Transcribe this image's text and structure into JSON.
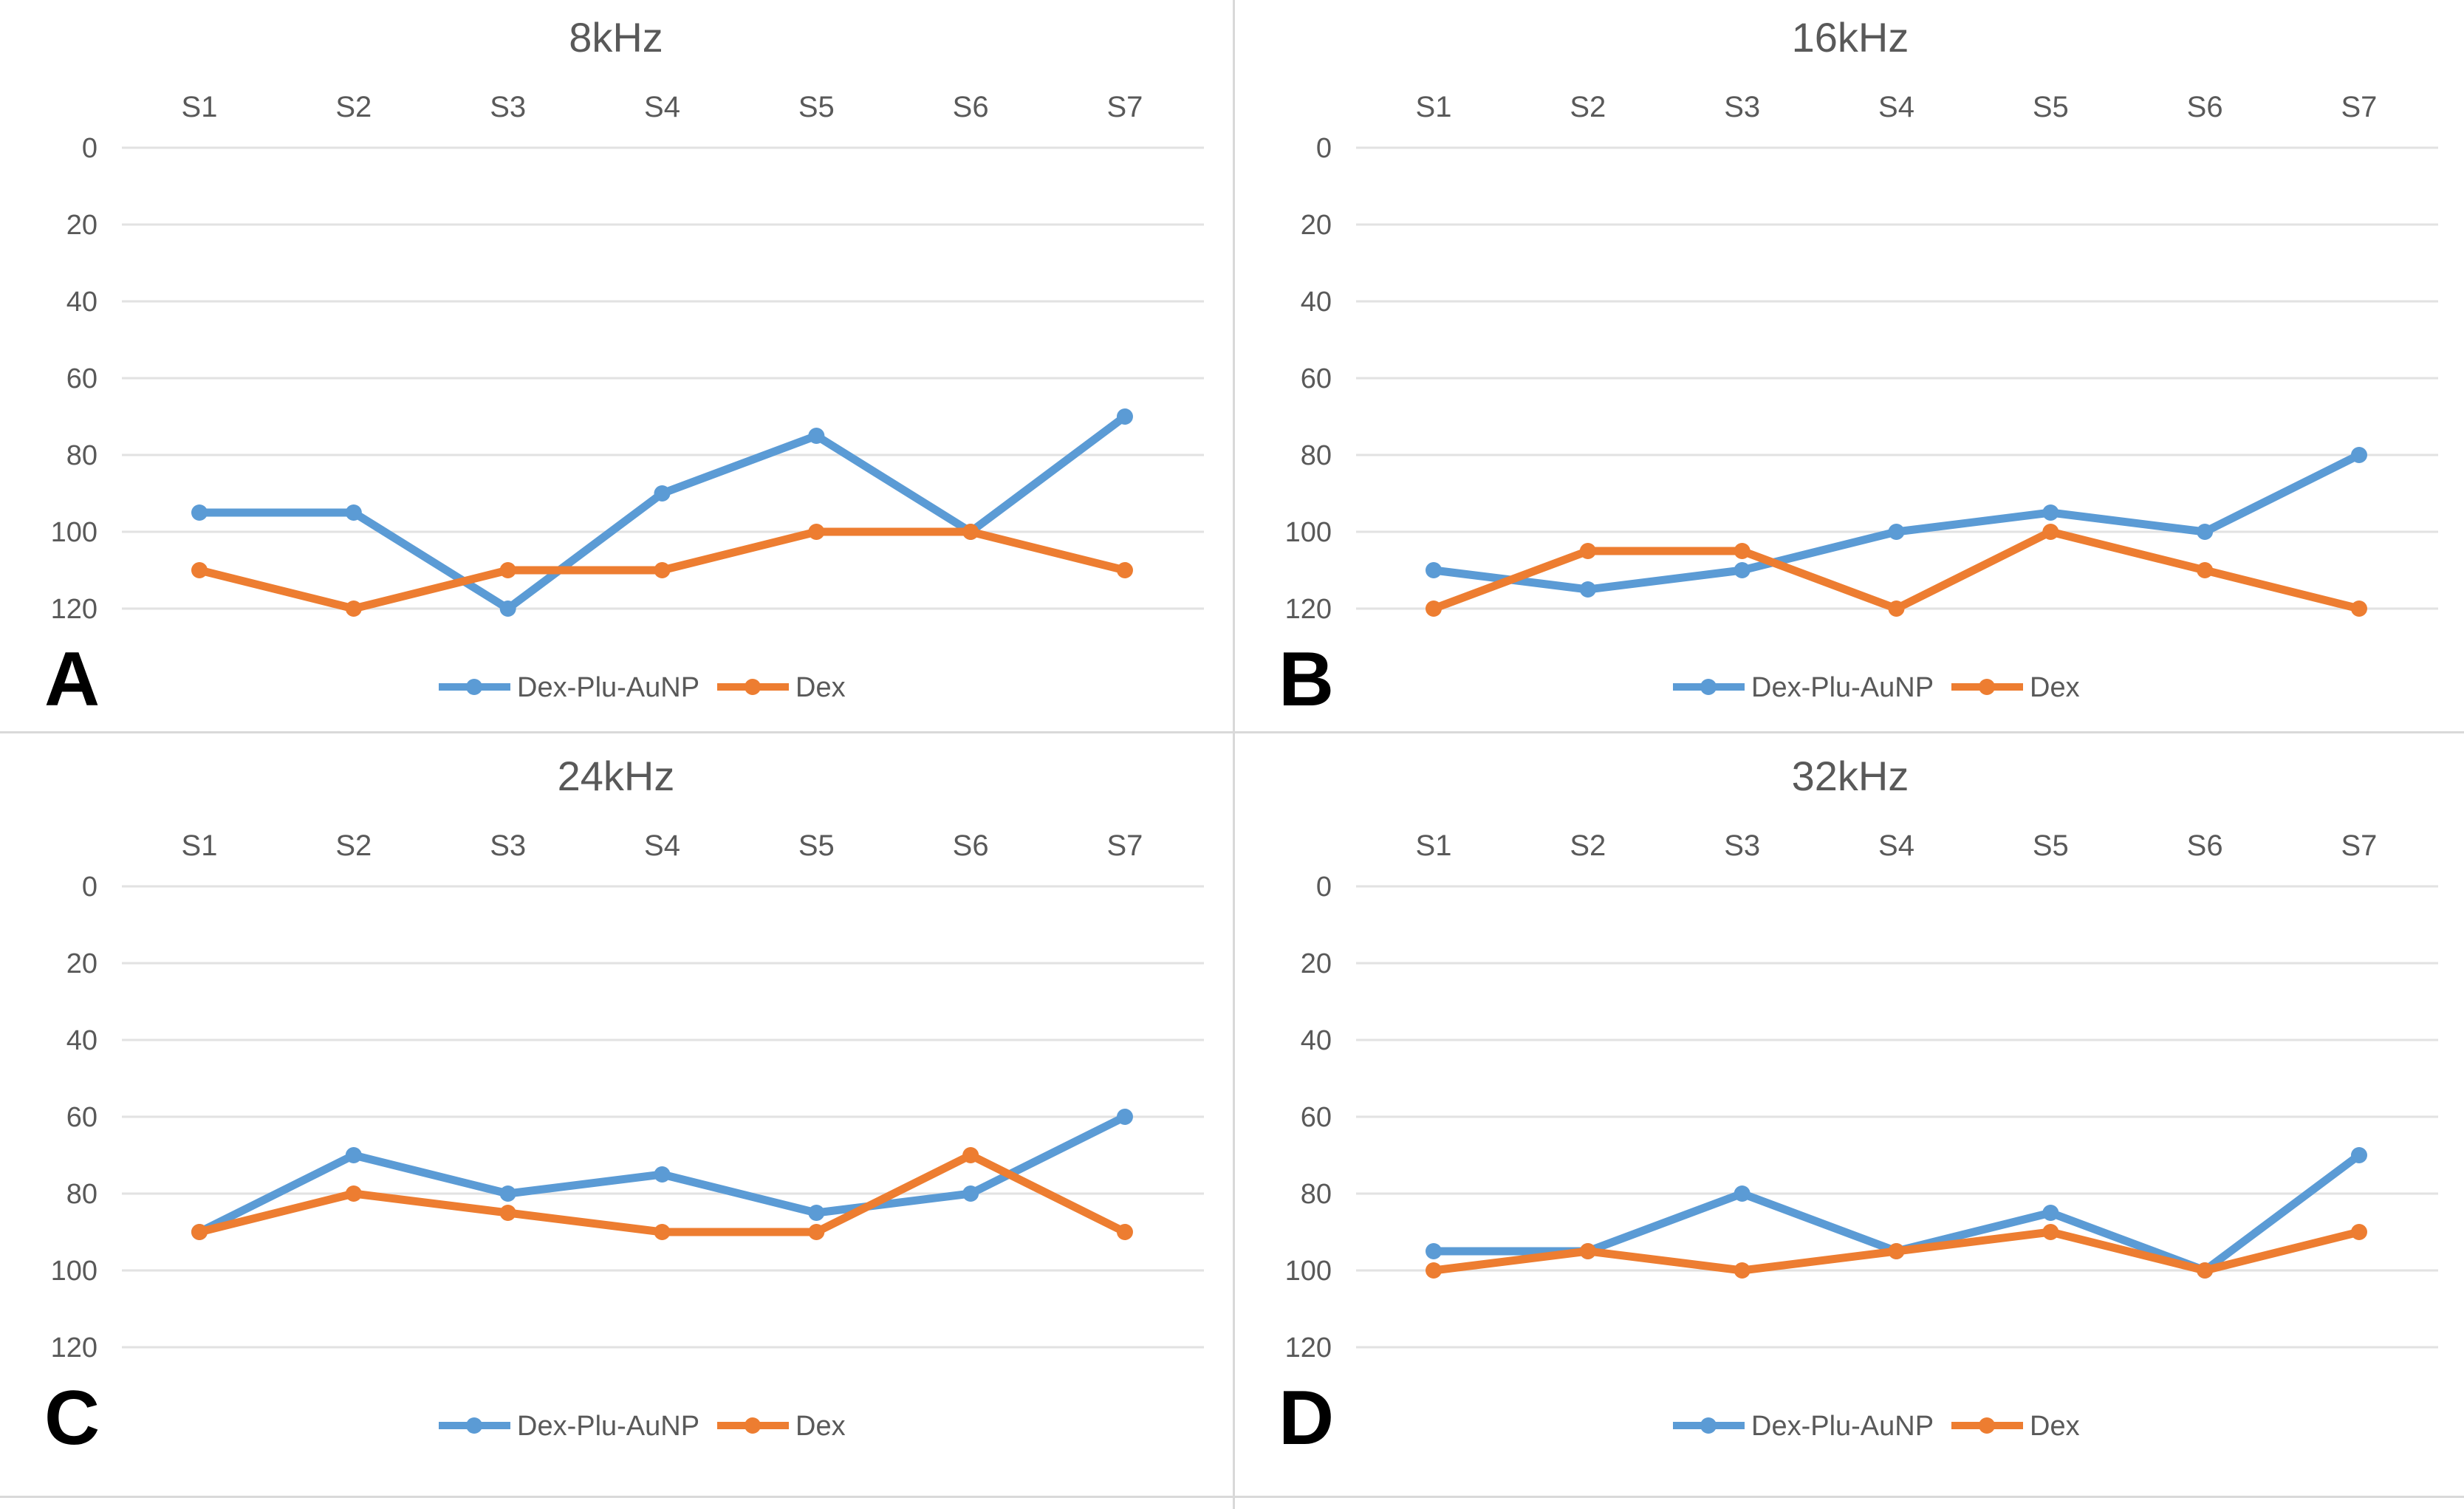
{
  "styles": {
    "text_color": "#595959",
    "grid_color": "#e2e2e2",
    "divider_color": "#d9d9d9",
    "series_blue": "#5B9BD5",
    "series_orange": "#ED7D31",
    "panel_letter_color": "#000000"
  },
  "legend": {
    "items": [
      "Dex-Plu-AuNP",
      "Dex"
    ]
  },
  "chart_data": [
    {
      "type": "line",
      "panel_label": "A",
      "title": "8kHz",
      "categories": [
        "S1",
        "S2",
        "S3",
        "S4",
        "S5",
        "S6",
        "S7"
      ],
      "series": [
        {
          "name": "Dex-Plu-AuNP",
          "color": "#5B9BD5",
          "values": [
            95,
            95,
            120,
            90,
            75,
            100,
            70
          ]
        },
        {
          "name": "Dex",
          "color": "#ED7D31",
          "values": [
            110,
            120,
            110,
            110,
            100,
            100,
            110
          ]
        }
      ],
      "xlabel": "",
      "ylabel": "",
      "ylim": [
        0,
        120
      ],
      "y_ticks": [
        0,
        20,
        40,
        60,
        80,
        100,
        120
      ],
      "y_axis_reversed": true,
      "x_axis_position": "top",
      "grid": true,
      "legend_position": "bottom"
    },
    {
      "type": "line",
      "panel_label": "B",
      "title": "16kHz",
      "categories": [
        "S1",
        "S2",
        "S3",
        "S4",
        "S5",
        "S6",
        "S7"
      ],
      "series": [
        {
          "name": "Dex-Plu-AuNP",
          "color": "#5B9BD5",
          "values": [
            110,
            115,
            110,
            100,
            95,
            100,
            80
          ]
        },
        {
          "name": "Dex",
          "color": "#ED7D31",
          "values": [
            120,
            105,
            105,
            120,
            100,
            110,
            120
          ]
        }
      ],
      "xlabel": "",
      "ylabel": "",
      "ylim": [
        0,
        120
      ],
      "y_ticks": [
        0,
        20,
        40,
        60,
        80,
        100,
        120
      ],
      "y_axis_reversed": true,
      "x_axis_position": "top",
      "grid": true,
      "legend_position": "bottom"
    },
    {
      "type": "line",
      "panel_label": "C",
      "title": "24kHz",
      "categories": [
        "S1",
        "S2",
        "S3",
        "S4",
        "S5",
        "S6",
        "S7"
      ],
      "series": [
        {
          "name": "Dex-Plu-AuNP",
          "color": "#5B9BD5",
          "values": [
            90,
            70,
            80,
            75,
            85,
            80,
            60
          ]
        },
        {
          "name": "Dex",
          "color": "#ED7D31",
          "values": [
            90,
            80,
            85,
            90,
            90,
            70,
            90
          ]
        }
      ],
      "xlabel": "",
      "ylabel": "",
      "ylim": [
        0,
        120
      ],
      "y_ticks": [
        0,
        20,
        40,
        60,
        80,
        100,
        120
      ],
      "y_axis_reversed": true,
      "x_axis_position": "top",
      "grid": true,
      "legend_position": "bottom"
    },
    {
      "type": "line",
      "panel_label": "D",
      "title": "32kHz",
      "categories": [
        "S1",
        "S2",
        "S3",
        "S4",
        "S5",
        "S6",
        "S7"
      ],
      "series": [
        {
          "name": "Dex-Plu-AuNP",
          "color": "#5B9BD5",
          "values": [
            95,
            95,
            80,
            95,
            85,
            100,
            70
          ]
        },
        {
          "name": "Dex",
          "color": "#ED7D31",
          "values": [
            100,
            95,
            100,
            95,
            90,
            100,
            90
          ]
        }
      ],
      "xlabel": "",
      "ylabel": "",
      "ylim": [
        0,
        120
      ],
      "y_ticks": [
        0,
        20,
        40,
        60,
        80,
        100,
        120
      ],
      "y_axis_reversed": true,
      "x_axis_position": "top",
      "grid": true,
      "legend_position": "bottom"
    }
  ]
}
